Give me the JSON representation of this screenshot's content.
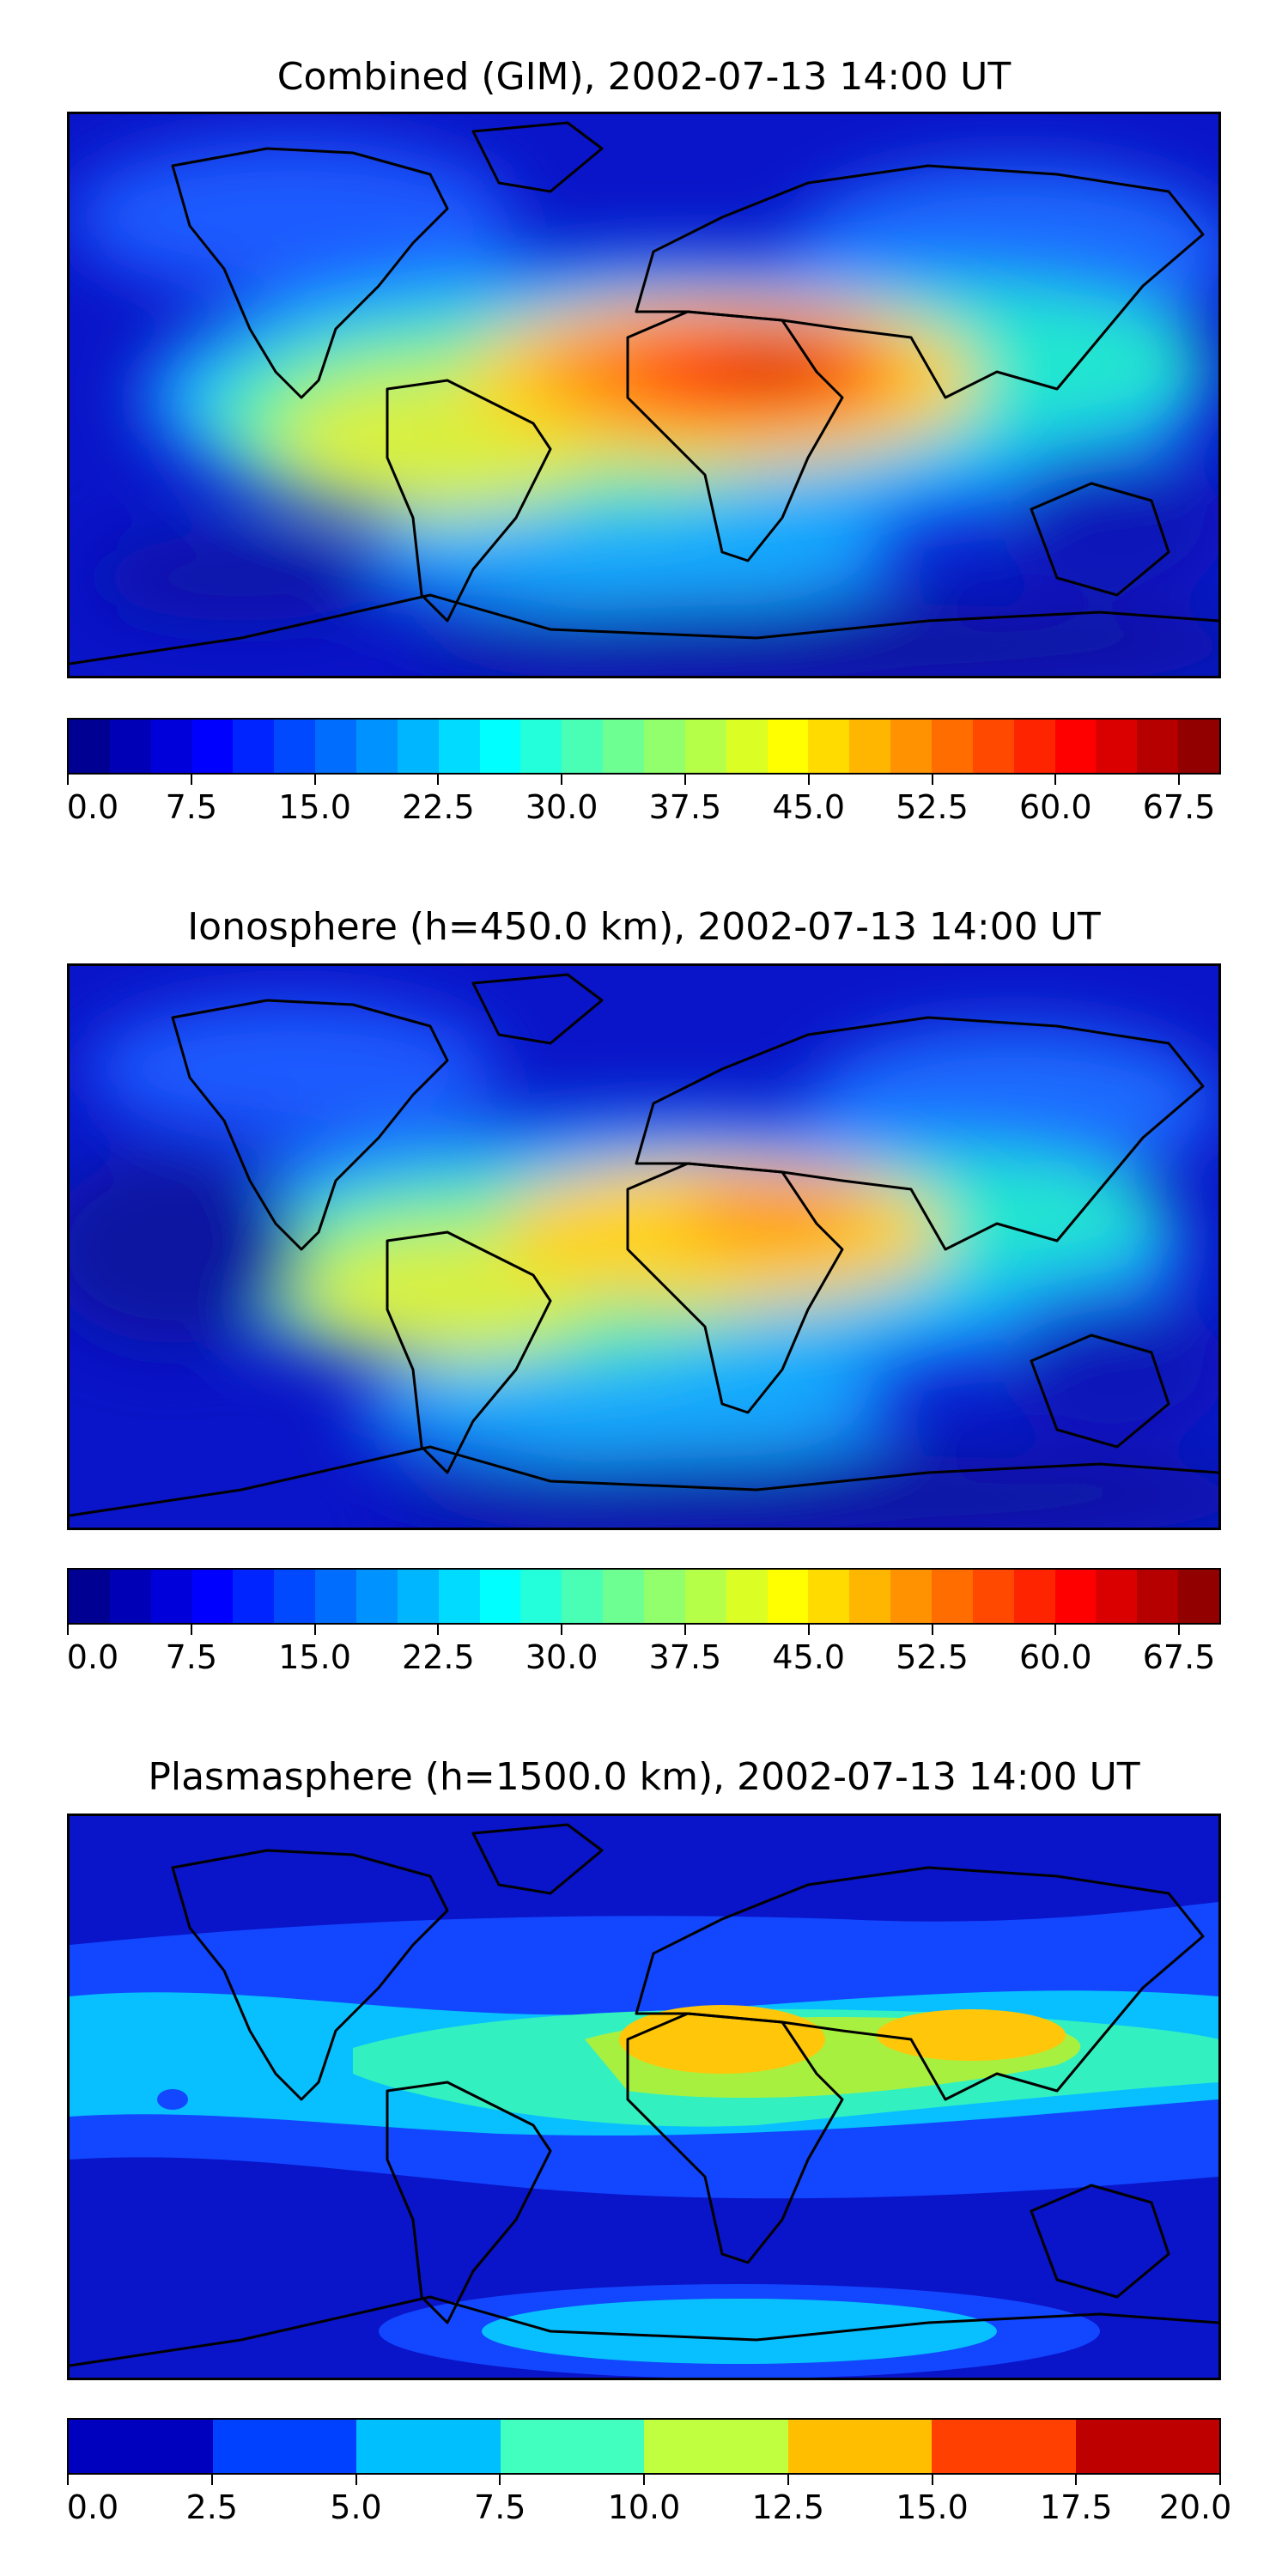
{
  "chart_data": [
    {
      "type": "heatmap",
      "title": "Combined (GIM), 2002-07-13 14:00 UT",
      "colorbar": {
        "min": 0.0,
        "max": 70.0,
        "levels": 28,
        "tick_labels": [
          "0.0",
          "7.5",
          "15.0",
          "22.5",
          "30.0",
          "37.5",
          "45.0",
          "52.5",
          "60.0",
          "67.5"
        ],
        "tick_values": [
          0.0,
          7.5,
          15.0,
          22.5,
          30.0,
          37.5,
          45.0,
          52.5,
          60.0,
          67.5
        ]
      },
      "peak_value": 65,
      "peak_region": "Northern Africa / Arabian Peninsula"
    },
    {
      "type": "heatmap",
      "title": "Ionosphere  (h=450.0 km), 2002-07-13 14:00 UT",
      "colorbar": {
        "min": 0.0,
        "max": 70.0,
        "levels": 28,
        "tick_labels": [
          "0.0",
          "7.5",
          "15.0",
          "22.5",
          "30.0",
          "37.5",
          "45.0",
          "52.5",
          "60.0",
          "67.5"
        ],
        "tick_values": [
          0.0,
          7.5,
          15.0,
          22.5,
          30.0,
          37.5,
          45.0,
          52.5,
          60.0,
          67.5
        ]
      },
      "peak_value": 52,
      "peak_region": "Horn of Africa / Arabian Peninsula"
    },
    {
      "type": "heatmap",
      "title": "Plasmasphere (h=1500.0 km), 2002-07-13 14:00 UT",
      "colorbar": {
        "min": 0.0,
        "max": 20.0,
        "levels": 8,
        "tick_labels": [
          "0.0",
          "2.5",
          "5.0",
          "7.5",
          "10.0",
          "12.5",
          "15.0",
          "17.5",
          "20.0"
        ],
        "tick_values": [
          0.0,
          2.5,
          5.0,
          7.5,
          10.0,
          12.5,
          15.0,
          17.5,
          20.0
        ]
      },
      "peak_value": 14,
      "peak_region": "Northern Africa and South-East Asia"
    }
  ]
}
